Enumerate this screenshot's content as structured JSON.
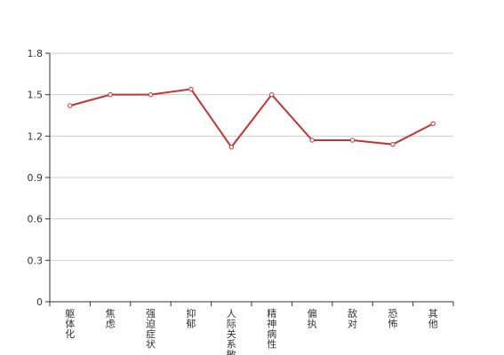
{
  "chart_data": {
    "type": "line",
    "categories": [
      "躯体化",
      "焦虑",
      "强迫症状",
      "抑郁",
      "人际关系敏感",
      "精神病性",
      "偏执",
      "敌对",
      "恐怖",
      "其他"
    ],
    "values": [
      1.42,
      1.5,
      1.5,
      1.54,
      1.12,
      1.5,
      1.17,
      1.17,
      1.14,
      1.29
    ],
    "color": "#c23531",
    "ylim": [
      0,
      1.8
    ],
    "yticks": [
      0,
      0.3,
      0.6,
      0.9,
      1.2,
      1.5,
      1.8
    ],
    "grid": true
  }
}
